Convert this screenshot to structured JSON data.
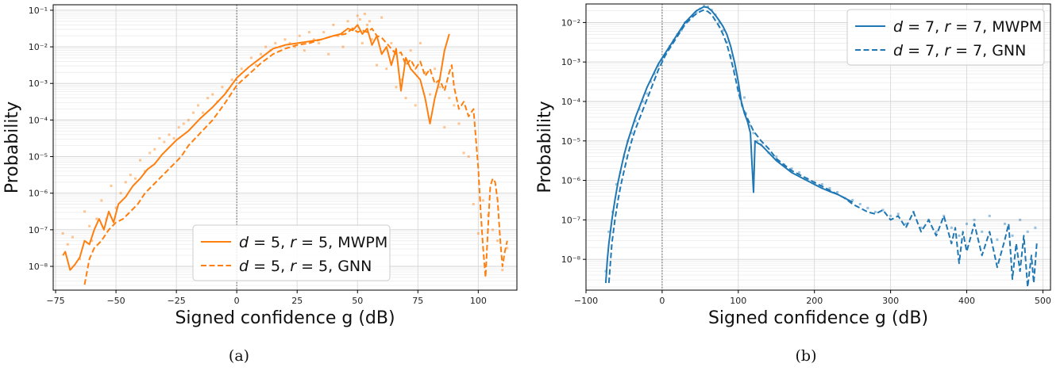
{
  "chart_data": [
    {
      "type": "line",
      "caption": "(a)",
      "xlabel": "Signed confidence g (dB)",
      "ylabel": "Probability",
      "xlim": [
        -76,
        116
      ],
      "ylim_exp": [
        -8.65,
        -0.85
      ],
      "y_scale": "log",
      "grid": true,
      "legend_position": "lower center",
      "color": "#ff7f0e",
      "x_ticks": [
        -75,
        -50,
        -25,
        0,
        25,
        50,
        75,
        100
      ],
      "x_tick_labels": [
        "−75",
        "−50",
        "−25",
        "0",
        "25",
        "50",
        "75",
        "100"
      ],
      "y_ticks_exp": [
        -8,
        -7,
        -6,
        -5,
        -4,
        -3,
        -2,
        -1
      ],
      "y_tick_labels": [
        "10⁻⁸",
        "10⁻⁷",
        "10⁻⁶",
        "10⁻⁵",
        "10⁻⁴",
        "10⁻³",
        "10⁻²",
        "10⁻¹"
      ],
      "vline_x": 0,
      "series": [
        {
          "name": "d = 5, r = 5, MWPM",
          "style": "solid",
          "x": [
            -72,
            -71,
            -69,
            -67,
            -65,
            -63,
            -61,
            -59,
            -57,
            -55,
            -53,
            -51,
            -49,
            -46,
            -43,
            -40,
            -37,
            -34,
            -31,
            -28,
            -25,
            -20,
            -15,
            -10,
            -5,
            0,
            5,
            10,
            15,
            20,
            25,
            30,
            35,
            40,
            43,
            46,
            48,
            50,
            52,
            54,
            56,
            58,
            60,
            62,
            64,
            66,
            68,
            70,
            72,
            74,
            76,
            78,
            80,
            82,
            84,
            86,
            88
          ],
          "y_exp": [
            -7.7,
            -7.6,
            -8.1,
            -7.95,
            -7.75,
            -7.3,
            -7.4,
            -7.0,
            -6.7,
            -7.0,
            -6.5,
            -6.8,
            -6.3,
            -6.1,
            -5.8,
            -5.6,
            -5.35,
            -5.2,
            -4.95,
            -4.75,
            -4.55,
            -4.3,
            -3.95,
            -3.65,
            -3.3,
            -2.85,
            -2.55,
            -2.3,
            -2.05,
            -1.95,
            -1.9,
            -1.85,
            -1.8,
            -1.7,
            -1.65,
            -1.5,
            -1.55,
            -1.4,
            -1.65,
            -1.5,
            -1.95,
            -1.7,
            -2.2,
            -2.0,
            -2.5,
            -2.05,
            -3.2,
            -2.3,
            -2.6,
            -2.75,
            -2.9,
            -3.4,
            -4.1,
            -3.4,
            -2.9,
            -2.1,
            -1.65
          ]
        },
        {
          "name": "d = 5, r = 5, GNN",
          "style": "dashed",
          "x": [
            -63,
            -61,
            -59,
            -56,
            -53,
            -50,
            -47,
            -44,
            -41,
            -38,
            -35,
            -32,
            -29,
            -26,
            -23,
            -20,
            -15,
            -10,
            -5,
            0,
            5,
            10,
            15,
            20,
            25,
            30,
            35,
            40,
            45,
            48,
            50,
            52,
            54,
            56,
            58,
            60,
            62,
            64,
            66,
            68,
            70,
            72,
            74,
            76,
            78,
            80,
            82,
            84,
            86,
            88,
            89,
            90,
            92,
            94,
            96,
            98,
            100,
            101,
            102,
            103,
            104,
            105,
            106,
            107,
            108,
            109,
            110,
            111,
            112
          ],
          "y_exp": [
            -8.5,
            -7.8,
            -7.5,
            -7.3,
            -7.0,
            -6.8,
            -6.7,
            -6.5,
            -6.3,
            -6.0,
            -5.8,
            -5.6,
            -5.4,
            -5.2,
            -5.0,
            -4.7,
            -4.35,
            -4.0,
            -3.55,
            -3.05,
            -2.75,
            -2.45,
            -2.2,
            -2.05,
            -1.95,
            -1.9,
            -1.8,
            -1.7,
            -1.65,
            -1.5,
            -1.6,
            -1.55,
            -1.6,
            -1.5,
            -1.7,
            -1.75,
            -1.9,
            -2.05,
            -2.2,
            -2.15,
            -2.5,
            -2.35,
            -2.6,
            -2.4,
            -2.8,
            -2.6,
            -3.0,
            -2.9,
            -3.2,
            -2.7,
            -2.5,
            -3.1,
            -3.7,
            -3.5,
            -3.9,
            -3.7,
            -5.3,
            -6.5,
            -7.5,
            -8.3,
            -7.0,
            -5.8,
            -5.6,
            -5.7,
            -6.2,
            -7.2,
            -8.0,
            -7.6,
            -7.3
          ]
        }
      ],
      "scatter_x": [
        -72,
        -70,
        -68,
        -65,
        -63,
        -61,
        -60,
        -58,
        -56,
        -54,
        -52,
        -50,
        -48,
        -46,
        -44,
        -42,
        -40,
        -38,
        -36,
        -34,
        -32,
        -30,
        -28,
        -26,
        -24,
        -22,
        -20,
        -18,
        -16,
        -14,
        -12,
        -10,
        -8,
        -6,
        -4,
        -2,
        2,
        4,
        6,
        8,
        10,
        12,
        14,
        16,
        18,
        20,
        22,
        24,
        26,
        28,
        30,
        32,
        34,
        36,
        38,
        40,
        42,
        44,
        46,
        48,
        50,
        51,
        52,
        53,
        54,
        55,
        56,
        58,
        60,
        62,
        64,
        66,
        68,
        70,
        72,
        74,
        76,
        78,
        80,
        82,
        84,
        86,
        88,
        90,
        92,
        94,
        96,
        98,
        100,
        102,
        104,
        106,
        108,
        110,
        112
      ],
      "scatter_y_exp": [
        -7.1,
        -7.4,
        -7.2,
        -7.8,
        -6.5,
        -6.9,
        -7.3,
        -6.7,
        -6.2,
        -6.7,
        -5.8,
        -6.4,
        -6.0,
        -5.7,
        -5.5,
        -5.6,
        -5.1,
        -5.4,
        -4.9,
        -4.8,
        -4.5,
        -4.6,
        -4.4,
        -4.5,
        -4.2,
        -4.1,
        -4.0,
        -3.8,
        -3.6,
        -3.8,
        -3.4,
        -3.3,
        -3.5,
        -3.1,
        -3.2,
        -2.9,
        -2.6,
        -2.8,
        -2.3,
        -2.5,
        -2.2,
        -2.0,
        -2.1,
        -1.9,
        -2.0,
        -1.8,
        -1.9,
        -2.0,
        -1.7,
        -2.1,
        -1.6,
        -1.8,
        -1.9,
        -1.6,
        -2.2,
        -1.4,
        -1.7,
        -2.0,
        -1.3,
        -1.5,
        -1.15,
        -1.25,
        -1.9,
        -1.1,
        -1.4,
        -1.3,
        -1.8,
        -2.5,
        -1.2,
        -2.6,
        -1.9,
        -3.1,
        -2.9,
        -3.4,
        -2.1,
        -3.6,
        -1.9,
        -2.7,
        -3.3,
        -2.6,
        -3.1,
        -4.2,
        -3.4,
        -3.6,
        -4.1,
        -4.9,
        -5.0,
        -6.3,
        -7.1,
        -6.2,
        -6.6,
        -7.0,
        -7.3,
        -8.1,
        -7.5
      ]
    },
    {
      "type": "line",
      "caption": "(b)",
      "xlabel": "Signed confidence g (dB)",
      "ylabel": "Probability",
      "xlim": [
        -100,
        510
      ],
      "ylim_exp": [
        -8.78,
        -1.53
      ],
      "y_scale": "log",
      "grid": true,
      "legend_position": "upper right",
      "color": "#1f77b4",
      "x_ticks": [
        -100,
        0,
        100,
        200,
        300,
        400,
        500
      ],
      "x_tick_labels": [
        "−100",
        "0",
        "100",
        "200",
        "300",
        "400",
        "500"
      ],
      "y_ticks_exp": [
        -8,
        -7,
        -6,
        -5,
        -4,
        -3,
        -2
      ],
      "y_tick_labels": [
        "10⁻⁸",
        "10⁻⁷",
        "10⁻⁶",
        "10⁻⁵",
        "10⁻⁴",
        "10⁻³",
        "10⁻²"
      ],
      "vline_x": 0,
      "series": [
        {
          "name": "d = 7, r = 7, MWPM",
          "style": "solid",
          "x": [
            -74,
            -72,
            -70,
            -66,
            -62,
            -58,
            -54,
            -50,
            -45,
            -40,
            -35,
            -30,
            -25,
            -20,
            -15,
            -10,
            -5,
            0,
            5,
            10,
            15,
            20,
            25,
            30,
            35,
            40,
            45,
            50,
            55,
            60,
            65,
            70,
            75,
            80,
            85,
            90,
            95,
            100,
            104,
            108,
            112,
            116,
            118,
            120,
            122,
            125,
            130,
            140,
            150,
            160,
            170,
            180,
            190,
            200,
            210,
            220,
            230,
            240,
            250
          ],
          "y_exp": [
            -8.6,
            -8.0,
            -7.6,
            -7.0,
            -6.5,
            -6.05,
            -5.7,
            -5.35,
            -5.0,
            -4.7,
            -4.4,
            -4.15,
            -3.9,
            -3.65,
            -3.45,
            -3.25,
            -3.05,
            -2.9,
            -2.75,
            -2.6,
            -2.45,
            -2.3,
            -2.15,
            -2.0,
            -1.9,
            -1.8,
            -1.7,
            -1.65,
            -1.6,
            -1.62,
            -1.7,
            -1.82,
            -1.95,
            -2.1,
            -2.3,
            -2.6,
            -3.0,
            -3.5,
            -4.0,
            -4.3,
            -4.5,
            -4.8,
            -5.6,
            -6.3,
            -5.0,
            -5.05,
            -5.1,
            -5.3,
            -5.5,
            -5.65,
            -5.8,
            -5.9,
            -6.0,
            -6.1,
            -6.2,
            -6.28,
            -6.35,
            -6.45,
            -6.55
          ]
        },
        {
          "name": "d = 7, r = 7, GNN",
          "style": "dashed",
          "x": [
            -70,
            -66,
            -62,
            -58,
            -54,
            -50,
            -45,
            -40,
            -35,
            -30,
            -25,
            -20,
            -15,
            -10,
            -5,
            0,
            5,
            10,
            15,
            20,
            25,
            30,
            35,
            40,
            45,
            50,
            55,
            60,
            65,
            70,
            75,
            80,
            85,
            90,
            95,
            100,
            105,
            110,
            115,
            120,
            130,
            140,
            150,
            160,
            170,
            180,
            190,
            200,
            210,
            220,
            230,
            240,
            250,
            260,
            270,
            280,
            290,
            300,
            310,
            320,
            330,
            340,
            350,
            360,
            370,
            380,
            385,
            390,
            395,
            400,
            410,
            420,
            430,
            440,
            450,
            455,
            460,
            465,
            470,
            475,
            480,
            485,
            488,
            492
          ],
          "y_exp": [
            -8.6,
            -7.6,
            -7.0,
            -6.5,
            -6.1,
            -5.75,
            -5.35,
            -5.0,
            -4.7,
            -4.45,
            -4.2,
            -3.95,
            -3.7,
            -3.45,
            -3.2,
            -3.0,
            -2.8,
            -2.65,
            -2.5,
            -2.35,
            -2.2,
            -2.05,
            -1.95,
            -1.85,
            -1.78,
            -1.72,
            -1.68,
            -1.72,
            -1.8,
            -1.95,
            -2.1,
            -2.3,
            -2.55,
            -2.9,
            -3.3,
            -3.75,
            -4.1,
            -4.35,
            -4.55,
            -4.75,
            -5.0,
            -5.2,
            -5.45,
            -5.6,
            -5.75,
            -5.85,
            -5.95,
            -6.05,
            -6.15,
            -6.25,
            -6.35,
            -6.45,
            -6.6,
            -6.7,
            -6.8,
            -6.85,
            -6.75,
            -7.0,
            -6.9,
            -7.2,
            -6.8,
            -7.3,
            -7.0,
            -7.4,
            -6.9,
            -7.6,
            -7.2,
            -8.1,
            -7.3,
            -7.8,
            -7.1,
            -7.9,
            -7.3,
            -8.2,
            -7.5,
            -7.1,
            -8.5,
            -7.6,
            -8.3,
            -7.4,
            -8.7,
            -7.9,
            -8.6,
            -7.6
          ]
        }
      ],
      "scatter_x": [
        -74,
        -70,
        -65,
        -60,
        -55,
        -50,
        -45,
        -40,
        -35,
        -30,
        -25,
        -20,
        -15,
        -10,
        -5,
        0,
        5,
        10,
        15,
        20,
        25,
        30,
        35,
        40,
        45,
        50,
        55,
        60,
        65,
        70,
        75,
        80,
        85,
        90,
        95,
        100,
        102,
        105,
        108,
        110,
        115,
        120,
        125,
        130,
        140,
        150,
        160,
        170,
        180,
        190,
        200,
        210,
        220,
        230,
        240,
        250,
        260,
        270,
        280,
        290,
        300,
        310,
        320,
        330,
        340,
        350,
        360,
        370,
        380,
        390,
        400,
        410,
        420,
        430,
        440,
        450,
        460,
        470,
        480,
        490
      ],
      "scatter_y_exp": [
        -8.3,
        -7.3,
        -6.8,
        -6.1,
        -5.8,
        -5.4,
        -5.0,
        -4.8,
        -4.5,
        -4.2,
        -4.0,
        -3.8,
        -3.5,
        -3.3,
        -3.1,
        -2.95,
        -2.8,
        -2.6,
        -2.45,
        -2.3,
        -2.2,
        -2.0,
        -1.95,
        -1.85,
        -1.75,
        -1.65,
        -1.58,
        -1.6,
        -1.68,
        -1.8,
        -2.0,
        -2.2,
        -2.5,
        -2.85,
        -3.2,
        -3.6,
        -3.8,
        -4.1,
        -3.9,
        -4.3,
        -4.6,
        -4.8,
        -5.0,
        -5.1,
        -5.3,
        -5.4,
        -5.6,
        -5.7,
        -5.8,
        -5.95,
        -6.05,
        -6.1,
        -6.2,
        -6.3,
        -6.45,
        -6.5,
        -6.6,
        -6.7,
        -6.8,
        -6.75,
        -6.9,
        -6.85,
        -7.1,
        -6.8,
        -7.2,
        -7.0,
        -7.3,
        -6.9,
        -7.2,
        -7.4,
        -7.1,
        -7.0,
        -7.3,
        -6.9,
        -7.5,
        -7.1,
        -7.4,
        -7.0,
        -7.3,
        -7.2
      ]
    }
  ]
}
